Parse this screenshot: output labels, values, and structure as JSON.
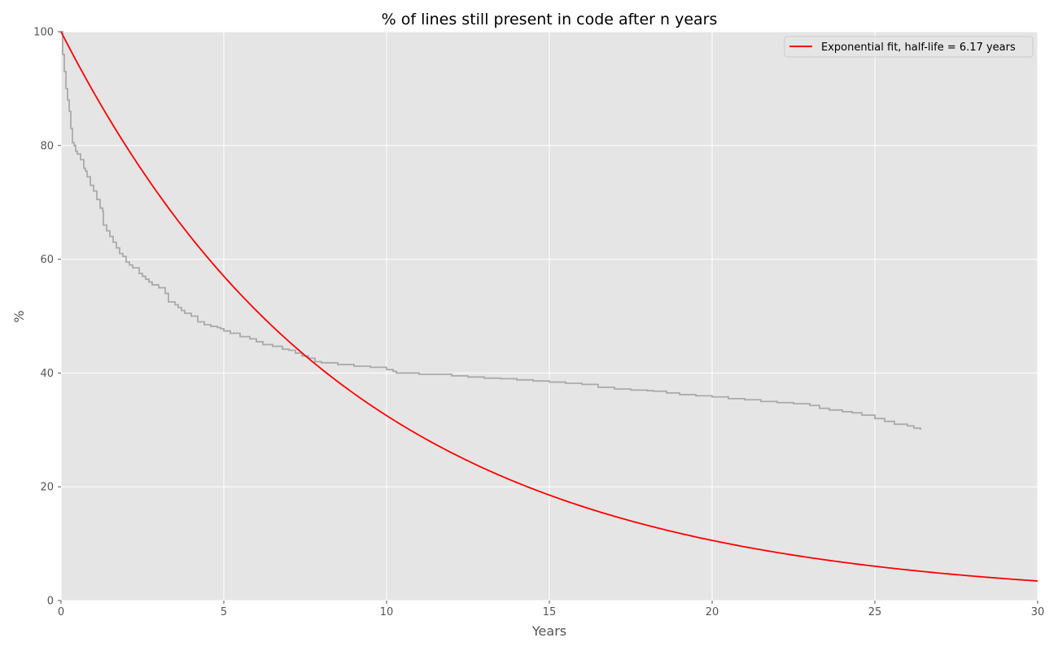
{
  "chart_data": {
    "type": "line",
    "title": "% of lines still present in code after n years",
    "xlabel": "Years",
    "ylabel": "%",
    "xlim": [
      0,
      30
    ],
    "ylim": [
      0,
      100
    ],
    "xticks": [
      0,
      5,
      10,
      15,
      20,
      25,
      30
    ],
    "yticks": [
      0,
      20,
      40,
      60,
      80,
      100
    ],
    "grid": true,
    "legend_position": "top-right",
    "background_color": "#e5e5e5",
    "grid_color": "#ffffff",
    "series": [
      {
        "name": "",
        "color": "#aaaaaa",
        "step": true,
        "x": [
          0,
          0.05,
          0.1,
          0.15,
          0.2,
          0.25,
          0.3,
          0.35,
          0.4,
          0.45,
          0.5,
          0.6,
          0.7,
          0.75,
          0.8,
          0.9,
          1.0,
          1.1,
          1.2,
          1.28,
          1.3,
          1.4,
          1.5,
          1.6,
          1.7,
          1.8,
          1.9,
          2.0,
          2.1,
          2.2,
          2.4,
          2.5,
          2.6,
          2.7,
          2.8,
          3.0,
          3.2,
          3.3,
          3.5,
          3.6,
          3.7,
          3.8,
          4.0,
          4.2,
          4.4,
          4.6,
          4.8,
          4.9,
          5.0,
          5.2,
          5.5,
          5.8,
          6.0,
          6.2,
          6.5,
          6.8,
          7.0,
          7.2,
          7.4,
          7.6,
          7.8,
          8.0,
          8.5,
          9.0,
          9.5,
          10.0,
          10.2,
          10.3,
          11.0,
          12.0,
          12.5,
          13.0,
          13.5,
          14.0,
          14.5,
          15.0,
          15.5,
          16.0,
          16.5,
          17.0,
          17.5,
          18.0,
          18.2,
          18.6,
          19.0,
          19.5,
          20.0,
          20.5,
          21.0,
          21.5,
          22.0,
          22.5,
          23.0,
          23.3,
          23.6,
          24.0,
          24.3,
          24.6,
          25.0,
          25.3,
          25.6,
          26.0,
          26.2,
          26.4
        ],
        "y": [
          100,
          96,
          93,
          90,
          88,
          86,
          83,
          80.5,
          80,
          79,
          78.5,
          77.5,
          76,
          75.5,
          74.5,
          73,
          72,
          70.5,
          69,
          68.5,
          66,
          65,
          64,
          63,
          62,
          61,
          60.5,
          59.5,
          59,
          58.5,
          57.5,
          57,
          56.5,
          56,
          55.5,
          55,
          54,
          52.5,
          52,
          51.5,
          51,
          50.5,
          50,
          49,
          48.5,
          48.2,
          48,
          47.8,
          47.4,
          47,
          46.4,
          46,
          45.5,
          45,
          44.7,
          44.2,
          44,
          43.5,
          43,
          42.6,
          42,
          41.8,
          41.5,
          41.2,
          41,
          40.6,
          40.3,
          40,
          39.8,
          39.5,
          39.3,
          39.1,
          39,
          38.8,
          38.6,
          38.4,
          38.2,
          38,
          37.5,
          37.2,
          37,
          36.9,
          36.8,
          36.5,
          36.2,
          36,
          35.8,
          35.5,
          35.3,
          35,
          34.8,
          34.6,
          34.3,
          33.8,
          33.5,
          33.2,
          33,
          32.6,
          32,
          31.5,
          31,
          30.7,
          30.3,
          30
        ]
      },
      {
        "name": "Exponential fit, half-life = 6.17 years",
        "color": "#ff0000",
        "function": "exponential",
        "y0": 100,
        "half_life": 6.17
      }
    ]
  }
}
